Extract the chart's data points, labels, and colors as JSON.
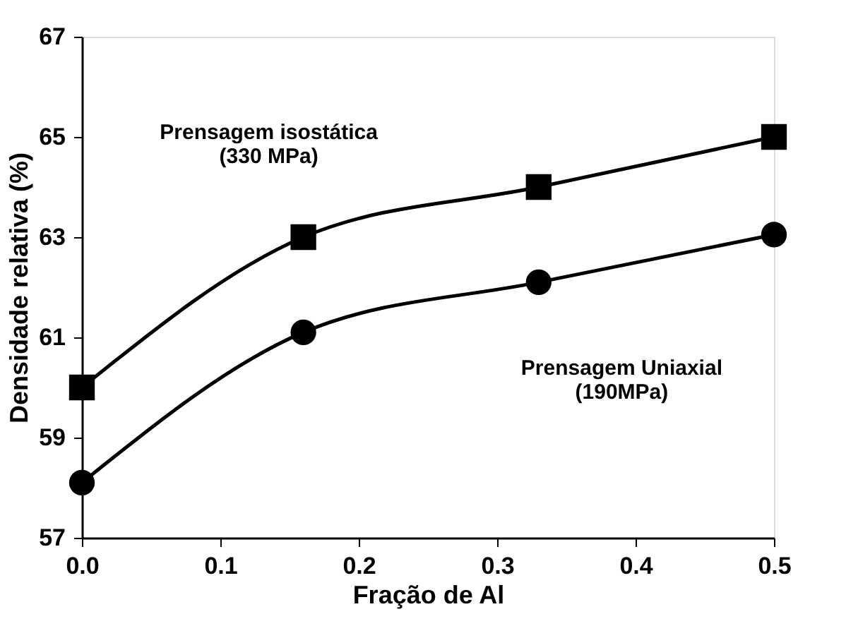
{
  "chart_data": {
    "type": "line",
    "xlabel": "Fração de Al",
    "ylabel": "Densidade relativa (%)",
    "x": [
      0.0,
      0.16,
      0.33,
      0.5
    ],
    "xlim": [
      0,
      0.5
    ],
    "xticks": [
      {
        "value": 0,
        "label": "0.0"
      },
      {
        "value": 0.1,
        "label": "0.1"
      },
      {
        "value": 0.2,
        "label": "0.2"
      },
      {
        "value": 0.3,
        "label": "0.3"
      },
      {
        "value": 0.4,
        "label": "0.4"
      },
      {
        "value": 0.5,
        "label": "0.5"
      }
    ],
    "ylim": [
      57,
      67
    ],
    "yticks": [
      57,
      59,
      61,
      63,
      65,
      67
    ],
    "grid": false,
    "line_style": "solid",
    "series": [
      {
        "name": "Prensagem isostática\n(330 MPa)",
        "color": "#000000",
        "marker": "square",
        "values": [
          60.0,
          63.0,
          64.0,
          65.0
        ]
      },
      {
        "name": "Prensagem Uniaxial\n(190MPa)",
        "color": "#000000",
        "marker": "circle",
        "values": [
          58.1,
          61.1,
          62.1,
          63.05
        ]
      }
    ]
  }
}
